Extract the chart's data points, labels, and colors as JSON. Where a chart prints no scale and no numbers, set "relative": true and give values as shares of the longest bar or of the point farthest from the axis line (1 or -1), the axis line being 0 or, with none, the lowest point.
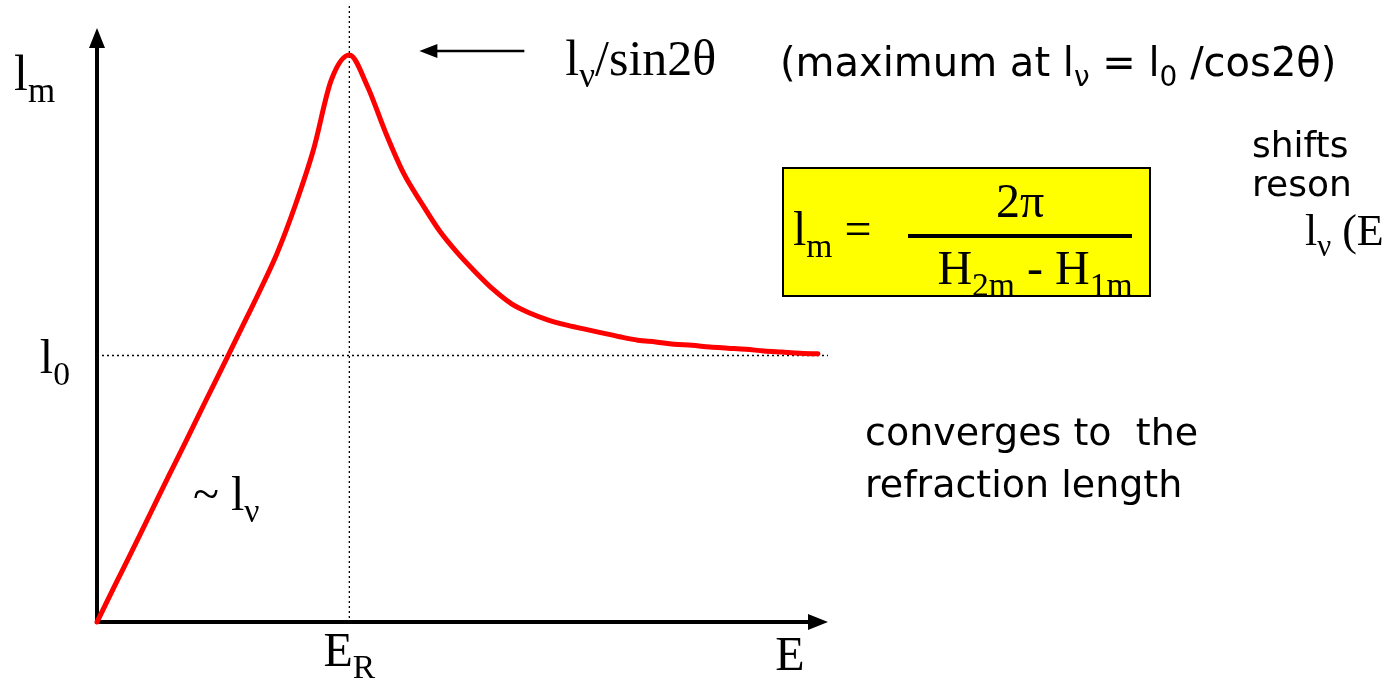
{
  "chart_data": {
    "type": "line",
    "relative": true,
    "xlabel": "E",
    "ylabel": "l$_{m}$",
    "color": "#ff0000",
    "categories": [
      null,
      null,
      null,
      null,
      null,
      null,
      null,
      null,
      null,
      null,
      null,
      null,
      null,
      null,
      null,
      null,
      null,
      null,
      null,
      null,
      null,
      null,
      null,
      null,
      null,
      null,
      null,
      null,
      null,
      null,
      null,
      null,
      null,
      null,
      null,
      null,
      null,
      null,
      null,
      null,
      null
    ],
    "values": [
      0,
      0.065,
      0.129,
      0.194,
      0.259,
      0.323,
      0.388,
      0.452,
      0.517,
      0.582,
      0.651,
      0.735,
      0.832,
      0.956,
      1,
      0.945,
      0.864,
      0.792,
      0.739,
      0.69,
      0.651,
      0.617,
      0.586,
      0.561,
      0.545,
      0.533,
      0.524,
      0.517,
      0.51,
      0.503,
      0.497,
      0.494,
      0.49,
      0.488,
      0.485,
      0.483,
      0.481,
      0.478,
      0.476,
      0.474,
      0.473
    ],
    "ref_lines": [
      {
        "axis": "y",
        "value": 0.47,
        "label": "l$_{0}$",
        "color": "#000000",
        "line_style": "dotted"
      }
    ],
    "annotations": [
      "l$_{ν}$/sin2θ",
      "(maximum at l$_{ν}$ = l$_{0}$ /cos2θ)",
      "l$_{m}$ =",
      "2π",
      "H$_{2m}$ - H$_{1m}$",
      "shifts",
      "reson",
      "l$_{ν}$ (E",
      "converges to  the\nrefraction length",
      "~ l$_{ν}$",
      "E$_{R}$"
    ]
  }
}
